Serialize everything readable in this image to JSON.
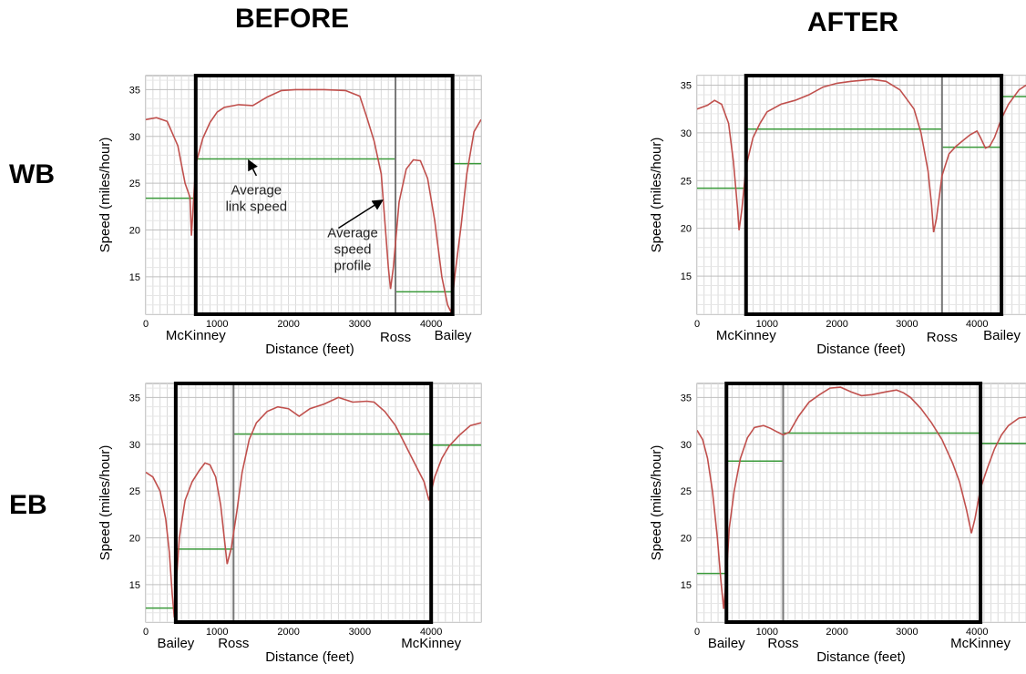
{
  "headers": {
    "before": "BEFORE",
    "after": "AFTER"
  },
  "rows": {
    "wb": "WB",
    "eb": "EB"
  },
  "colors": {
    "speed_profile": "#c0504d",
    "link_speed": "#3a9a3a",
    "study_box": "#000000",
    "divider": "#777777",
    "grid": "#d9d9d9"
  },
  "chart_data": [
    {
      "id": "wb-before",
      "type": "line",
      "direction": "WB",
      "period": "BEFORE",
      "xlabel": "Distance (feet)",
      "ylabel": "Speed (miles/hour)",
      "xlim": [
        0,
        4700
      ],
      "ylim": [
        11,
        36.5
      ],
      "xticks": [
        0,
        1000,
        2000,
        3000,
        4000
      ],
      "yticks": [
        15,
        20,
        25,
        30,
        35
      ],
      "landmarks": [
        {
          "label": "McKinney",
          "x": 700
        },
        {
          "label": "Ross",
          "x": 3500
        },
        {
          "label": "Bailey",
          "x": 4300
        }
      ],
      "study_box": [
        700,
        4300
      ],
      "profile": [
        [
          0,
          31.8
        ],
        [
          150,
          32
        ],
        [
          300,
          31.6
        ],
        [
          450,
          29
        ],
        [
          550,
          25
        ],
        [
          620,
          23.5
        ],
        [
          640,
          19.4
        ],
        [
          660,
          22
        ],
        [
          700,
          27
        ],
        [
          800,
          29.8
        ],
        [
          900,
          31.5
        ],
        [
          1000,
          32.6
        ],
        [
          1100,
          33.1
        ],
        [
          1300,
          33.4
        ],
        [
          1500,
          33.3
        ],
        [
          1700,
          34.2
        ],
        [
          1900,
          34.9
        ],
        [
          2100,
          35
        ],
        [
          2500,
          35
        ],
        [
          2800,
          34.9
        ],
        [
          3000,
          34.3
        ],
        [
          3100,
          32
        ],
        [
          3200,
          29.5
        ],
        [
          3300,
          26
        ],
        [
          3350,
          21
        ],
        [
          3400,
          16
        ],
        [
          3430,
          13.7
        ],
        [
          3470,
          16
        ],
        [
          3550,
          23
        ],
        [
          3650,
          26.5
        ],
        [
          3750,
          27.5
        ],
        [
          3850,
          27.4
        ],
        [
          3950,
          25.5
        ],
        [
          4050,
          21
        ],
        [
          4150,
          15
        ],
        [
          4230,
          12
        ],
        [
          4280,
          11.2
        ],
        [
          4330,
          15
        ],
        [
          4420,
          20.5
        ],
        [
          4500,
          26
        ],
        [
          4600,
          30.5
        ],
        [
          4700,
          31.8
        ]
      ],
      "link_speed": [
        {
          "from": 0,
          "to": 700,
          "value": 23.4
        },
        {
          "from": 700,
          "to": 3500,
          "value": 27.6
        },
        {
          "from": 3500,
          "to": 4300,
          "value": 13.4
        },
        {
          "from": 4300,
          "to": 4700,
          "value": 27.1
        }
      ],
      "annotations": [
        {
          "lines": [
            "Average",
            "link speed"
          ],
          "x": 1550,
          "y": 23.8,
          "arrow_from": [
            1550,
            25.8
          ],
          "arrow_to": [
            1450,
            27.3
          ]
        },
        {
          "lines": [
            "Average",
            "speed",
            "profile"
          ],
          "x": 2900,
          "y": 19.2,
          "arrow_from": [
            2700,
            20.2
          ],
          "arrow_to": [
            3300,
            23.1
          ]
        }
      ]
    },
    {
      "id": "wb-after",
      "type": "line",
      "direction": "WB",
      "period": "AFTER",
      "xlabel": "Distance (feet)",
      "ylabel": "Speed (miles/hour)",
      "xlim": [
        0,
        4700
      ],
      "ylim": [
        11,
        36
      ],
      "xticks": [
        0,
        1000,
        2000,
        3000,
        4000
      ],
      "yticks": [
        15,
        20,
        25,
        30,
        35
      ],
      "landmarks": [
        {
          "label": "McKinney",
          "x": 700
        },
        {
          "label": "Ross",
          "x": 3500
        },
        {
          "label": "Bailey",
          "x": 4350
        }
      ],
      "study_box": [
        700,
        4350
      ],
      "profile": [
        [
          0,
          32.5
        ],
        [
          150,
          32.9
        ],
        [
          250,
          33.4
        ],
        [
          350,
          33
        ],
        [
          450,
          31
        ],
        [
          520,
          27
        ],
        [
          580,
          22
        ],
        [
          600,
          19.8
        ],
        [
          640,
          22
        ],
        [
          700,
          26.5
        ],
        [
          800,
          29.5
        ],
        [
          900,
          31
        ],
        [
          1000,
          32.2
        ],
        [
          1200,
          33
        ],
        [
          1400,
          33.4
        ],
        [
          1600,
          34
        ],
        [
          1800,
          34.8
        ],
        [
          2000,
          35.2
        ],
        [
          2200,
          35.4
        ],
        [
          2500,
          35.6
        ],
        [
          2700,
          35.4
        ],
        [
          2900,
          34.5
        ],
        [
          3100,
          32.5
        ],
        [
          3200,
          30
        ],
        [
          3300,
          26
        ],
        [
          3350,
          22.5
        ],
        [
          3380,
          19.6
        ],
        [
          3420,
          21
        ],
        [
          3500,
          25.5
        ],
        [
          3600,
          27.8
        ],
        [
          3700,
          28.6
        ],
        [
          3800,
          29.2
        ],
        [
          3900,
          29.8
        ],
        [
          4000,
          30.2
        ],
        [
          4050,
          29.5
        ],
        [
          4120,
          28.4
        ],
        [
          4180,
          28.6
        ],
        [
          4250,
          29.5
        ],
        [
          4350,
          31.5
        ],
        [
          4450,
          33
        ],
        [
          4600,
          34.5
        ],
        [
          4700,
          35
        ]
      ],
      "link_speed": [
        {
          "from": 0,
          "to": 700,
          "value": 24.2
        },
        {
          "from": 700,
          "to": 3500,
          "value": 30.4
        },
        {
          "from": 3500,
          "to": 4350,
          "value": 28.5
        },
        {
          "from": 4350,
          "to": 4700,
          "value": 33.8
        }
      ]
    },
    {
      "id": "eb-before",
      "type": "line",
      "direction": "EB",
      "period": "BEFORE",
      "xlabel": "Distance (feet)",
      "ylabel": "Speed (miles/hour)",
      "xlim": [
        0,
        4700
      ],
      "ylim": [
        11,
        36.5
      ],
      "xticks": [
        0,
        1000,
        2000,
        3000,
        4000
      ],
      "yticks": [
        15,
        20,
        25,
        30,
        35
      ],
      "landmarks": [
        {
          "label": "Bailey",
          "x": 420
        },
        {
          "label": "Ross",
          "x": 1230
        },
        {
          "label": "McKinney",
          "x": 4000
        }
      ],
      "study_box": [
        420,
        4000
      ],
      "profile": [
        [
          0,
          27
        ],
        [
          100,
          26.5
        ],
        [
          200,
          25
        ],
        [
          280,
          22
        ],
        [
          330,
          18.5
        ],
        [
          370,
          14
        ],
        [
          400,
          11.5
        ],
        [
          430,
          15.5
        ],
        [
          470,
          20
        ],
        [
          550,
          24
        ],
        [
          650,
          26
        ],
        [
          750,
          27.2
        ],
        [
          830,
          28
        ],
        [
          900,
          27.8
        ],
        [
          980,
          26.5
        ],
        [
          1050,
          23.5
        ],
        [
          1100,
          20
        ],
        [
          1140,
          17.2
        ],
        [
          1200,
          19
        ],
        [
          1280,
          23
        ],
        [
          1350,
          27
        ],
        [
          1450,
          30.5
        ],
        [
          1550,
          32.3
        ],
        [
          1700,
          33.5
        ],
        [
          1850,
          34
        ],
        [
          2000,
          33.8
        ],
        [
          2150,
          33
        ],
        [
          2300,
          33.8
        ],
        [
          2500,
          34.3
        ],
        [
          2700,
          35
        ],
        [
          2900,
          34.5
        ],
        [
          3100,
          34.6
        ],
        [
          3200,
          34.5
        ],
        [
          3350,
          33.5
        ],
        [
          3500,
          32
        ],
        [
          3600,
          30.5
        ],
        [
          3700,
          29
        ],
        [
          3800,
          27.5
        ],
        [
          3900,
          26
        ],
        [
          3970,
          24
        ],
        [
          4050,
          26.5
        ],
        [
          4150,
          28.5
        ],
        [
          4250,
          29.8
        ],
        [
          4400,
          31
        ],
        [
          4550,
          32
        ],
        [
          4700,
          32.3
        ]
      ],
      "link_speed": [
        {
          "from": 0,
          "to": 420,
          "value": 12.5
        },
        {
          "from": 420,
          "to": 1230,
          "value": 18.8
        },
        {
          "from": 1230,
          "to": 4000,
          "value": 31.1
        },
        {
          "from": 4000,
          "to": 4700,
          "value": 29.9
        }
      ]
    },
    {
      "id": "eb-after",
      "type": "line",
      "direction": "EB",
      "period": "AFTER",
      "xlabel": "Distance (feet)",
      "ylabel": "Speed (miles/hour)",
      "xlim": [
        0,
        4700
      ],
      "ylim": [
        11,
        36.5
      ],
      "xticks": [
        0,
        1000,
        2000,
        3000,
        4000
      ],
      "yticks": [
        15,
        20,
        25,
        30,
        35
      ],
      "landmarks": [
        {
          "label": "Bailey",
          "x": 420
        },
        {
          "label": "Ross",
          "x": 1230
        },
        {
          "label": "McKinney",
          "x": 4050
        }
      ],
      "study_box": [
        420,
        4050
      ],
      "profile": [
        [
          0,
          31.5
        ],
        [
          80,
          30.5
        ],
        [
          150,
          28.5
        ],
        [
          220,
          25
        ],
        [
          290,
          20
        ],
        [
          340,
          15.5
        ],
        [
          380,
          12.4
        ],
        [
          420,
          16
        ],
        [
          460,
          21
        ],
        [
          530,
          25
        ],
        [
          620,
          28.5
        ],
        [
          720,
          30.7
        ],
        [
          820,
          31.8
        ],
        [
          950,
          32
        ],
        [
          1050,
          31.7
        ],
        [
          1150,
          31.3
        ],
        [
          1230,
          31
        ],
        [
          1320,
          31.3
        ],
        [
          1450,
          33
        ],
        [
          1600,
          34.5
        ],
        [
          1750,
          35.3
        ],
        [
          1900,
          36
        ],
        [
          2050,
          36.1
        ],
        [
          2200,
          35.6
        ],
        [
          2350,
          35.2
        ],
        [
          2500,
          35.3
        ],
        [
          2700,
          35.6
        ],
        [
          2850,
          35.8
        ],
        [
          2950,
          35.5
        ],
        [
          3050,
          35
        ],
        [
          3200,
          33.8
        ],
        [
          3350,
          32.3
        ],
        [
          3500,
          30.5
        ],
        [
          3650,
          28
        ],
        [
          3750,
          26
        ],
        [
          3850,
          23
        ],
        [
          3920,
          20.5
        ],
        [
          3970,
          22
        ],
        [
          4050,
          25.3
        ],
        [
          4150,
          27.5
        ],
        [
          4250,
          29.5
        ],
        [
          4350,
          31
        ],
        [
          4450,
          32
        ],
        [
          4600,
          32.8
        ],
        [
          4700,
          32.9
        ]
      ],
      "link_speed": [
        {
          "from": 0,
          "to": 420,
          "value": 16.2
        },
        {
          "from": 420,
          "to": 1230,
          "value": 28.2
        },
        {
          "from": 1230,
          "to": 4050,
          "value": 31.2
        },
        {
          "from": 4050,
          "to": 4700,
          "value": 30.1
        }
      ]
    }
  ]
}
